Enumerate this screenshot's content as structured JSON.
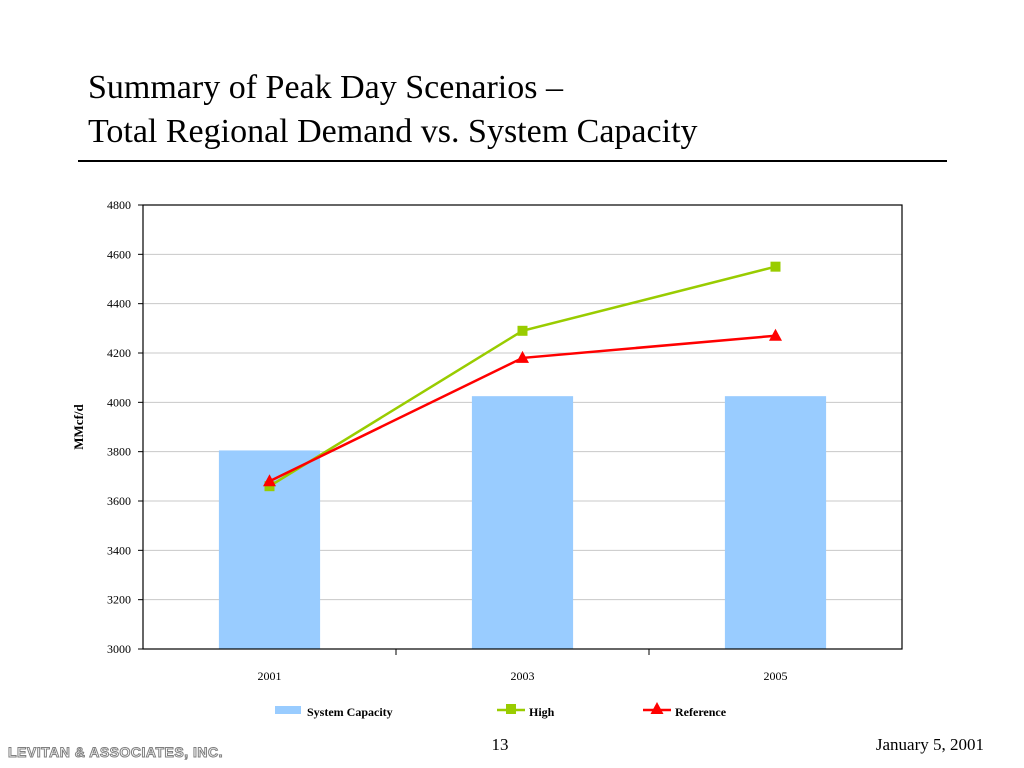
{
  "slide": {
    "title_line1": "Summary of Peak Day Scenarios –",
    "title_line2": "Total Regional Demand vs. System Capacity"
  },
  "footer": {
    "company": "LEVITAN & ASSOCIATES, INC.",
    "page_number": "13",
    "date": "January 5, 2001"
  },
  "chart_data": {
    "type": "bar",
    "categories": [
      "2001",
      "2003",
      "2005"
    ],
    "ylabel": "MMcf/d",
    "xlabel": "",
    "ylim": [
      3000,
      4800
    ],
    "yticks": [
      3000,
      3200,
      3400,
      3600,
      3800,
      4000,
      4200,
      4400,
      4600,
      4800
    ],
    "grid": true,
    "legend_position": "bottom",
    "series": [
      {
        "name": "System Capacity",
        "kind": "bar",
        "color": "#99ccff",
        "values": [
          3805,
          4025,
          4025
        ]
      },
      {
        "name": "High",
        "kind": "line",
        "marker": "square",
        "color": "#99cc00",
        "values": [
          3660,
          4290,
          4550
        ]
      },
      {
        "name": "Reference",
        "kind": "line",
        "marker": "triangle",
        "color": "#ff0000",
        "values": [
          3680,
          4180,
          4270
        ]
      }
    ]
  }
}
